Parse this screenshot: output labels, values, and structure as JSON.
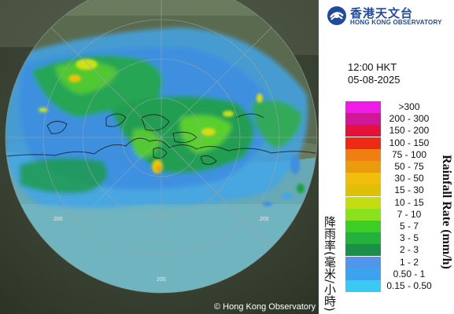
{
  "map": {
    "range_labels": [
      "200",
      "200",
      "200"
    ],
    "copyright": "© Hong Kong Observatory"
  },
  "logo": {
    "name_cn": "香港天文台",
    "name_en": "HONG KONG OBSERVATORY",
    "icon": "hko-emblem-icon"
  },
  "timestamp": {
    "time": "12:00 HKT",
    "date": "05-08-2025"
  },
  "legend": {
    "title_cn": "降雨率(毫米/小時)",
    "title_en": "Rainfall Rate (mm/h)",
    "items": [
      {
        "label": ">300",
        "color": "#ee1ce4"
      },
      {
        "label": "200 - 300",
        "color": "#d11799"
      },
      {
        "label": "150 - 200",
        "color": "#e4113a"
      },
      {
        "label": "100 - 150",
        "color": "#ee2a14"
      },
      {
        "label": "75 - 100",
        "color": "#ef7f10"
      },
      {
        "label": "50 - 75",
        "color": "#eb9c0e"
      },
      {
        "label": "30 - 50",
        "color": "#f1bf0b"
      },
      {
        "label": "15 - 30",
        "color": "#dec106"
      },
      {
        "label": "10 - 15",
        "color": "#c3dd11"
      },
      {
        "label": "7 - 10",
        "color": "#8ae21e"
      },
      {
        "label": "5 - 7",
        "color": "#3dce26"
      },
      {
        "label": "3 - 5",
        "color": "#23b23b"
      },
      {
        "label": "2 - 3",
        "color": "#1b8f49"
      },
      {
        "label": "1 - 2",
        "color": "#4f96ec"
      },
      {
        "label": "0.50 - 1",
        "color": "#3ea3ef"
      },
      {
        "label": "0.15 - 0.50",
        "color": "#39c9f3"
      }
    ]
  }
}
